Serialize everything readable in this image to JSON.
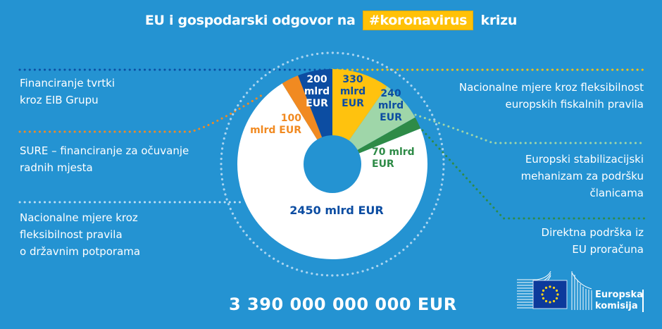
{
  "title": {
    "before": "EU i gospodarski odgovor na",
    "highlight": "#koronavirus",
    "after": "krizu"
  },
  "labels": {
    "eib": [
      "Financiranje tvrtki",
      "kroz EIB Grupu"
    ],
    "sure": [
      "SURE – financiranje za očuvanje",
      "radnih mjesta"
    ],
    "state_aid": [
      "Nacionalne mjere kroz",
      "fleksibilnost pravila",
      "o državnim potporama"
    ],
    "fiscal": [
      "Nacionalne mjere kroz fleksibilnost",
      "europskih fiskalnih pravila"
    ],
    "esm": [
      "Europski stabilizacijski",
      "mehanizam za podršku",
      "članicama"
    ],
    "budget": [
      "Direktna podrška iz",
      "EU proračuna"
    ]
  },
  "values": {
    "eib": [
      "200",
      "mlrd",
      "EUR"
    ],
    "sure": [
      "100",
      "mlrd EUR"
    ],
    "fiscal": [
      "330",
      "mlrd",
      "EUR"
    ],
    "esm": [
      "240",
      "mlrd",
      "EUR"
    ],
    "budget": [
      "70 mlrd",
      "EUR"
    ],
    "state_aid": "2450 mlrd EUR"
  },
  "total": "3 390 000 000 000 EUR",
  "logo": {
    "line1": "Europska",
    "line2": "komisija"
  },
  "colors": {
    "background": "#2493d2",
    "state_aid": "#ffffff",
    "sure": "#f18a21",
    "eib": "#0c4da2",
    "fiscal": "#ffc20e",
    "esm": "#9fd6a9",
    "budget": "#2e8b47",
    "text_dark_blue": "#0c4da2"
  },
  "chart_data": {
    "type": "pie",
    "title": "EU i gospodarski odgovor na #koronavirus krizu",
    "unit": "mlrd EUR",
    "donut": true,
    "start": "top, clockwise",
    "categories": [
      "Nacionalne mjere kroz fleksibilnost europskih fiskalnih pravila",
      "Europski stabilizacijski mehanizam za podršku članicama",
      "Direktna podrška iz EU proračuna",
      "Nacionalne mjere kroz fleksibilnost pravila o državnim potporama",
      "SURE – financiranje za očuvanje radnih mjesta",
      "Financiranje tvrtki kroz EIB Grupu"
    ],
    "values": [
      330,
      240,
      70,
      2450,
      100,
      200
    ],
    "colors": [
      "#ffc20e",
      "#9fd6a9",
      "#2e8b47",
      "#ffffff",
      "#f18a21",
      "#0c4da2"
    ],
    "total_label": "3 390 000 000 000 EUR",
    "total": 3390
  }
}
